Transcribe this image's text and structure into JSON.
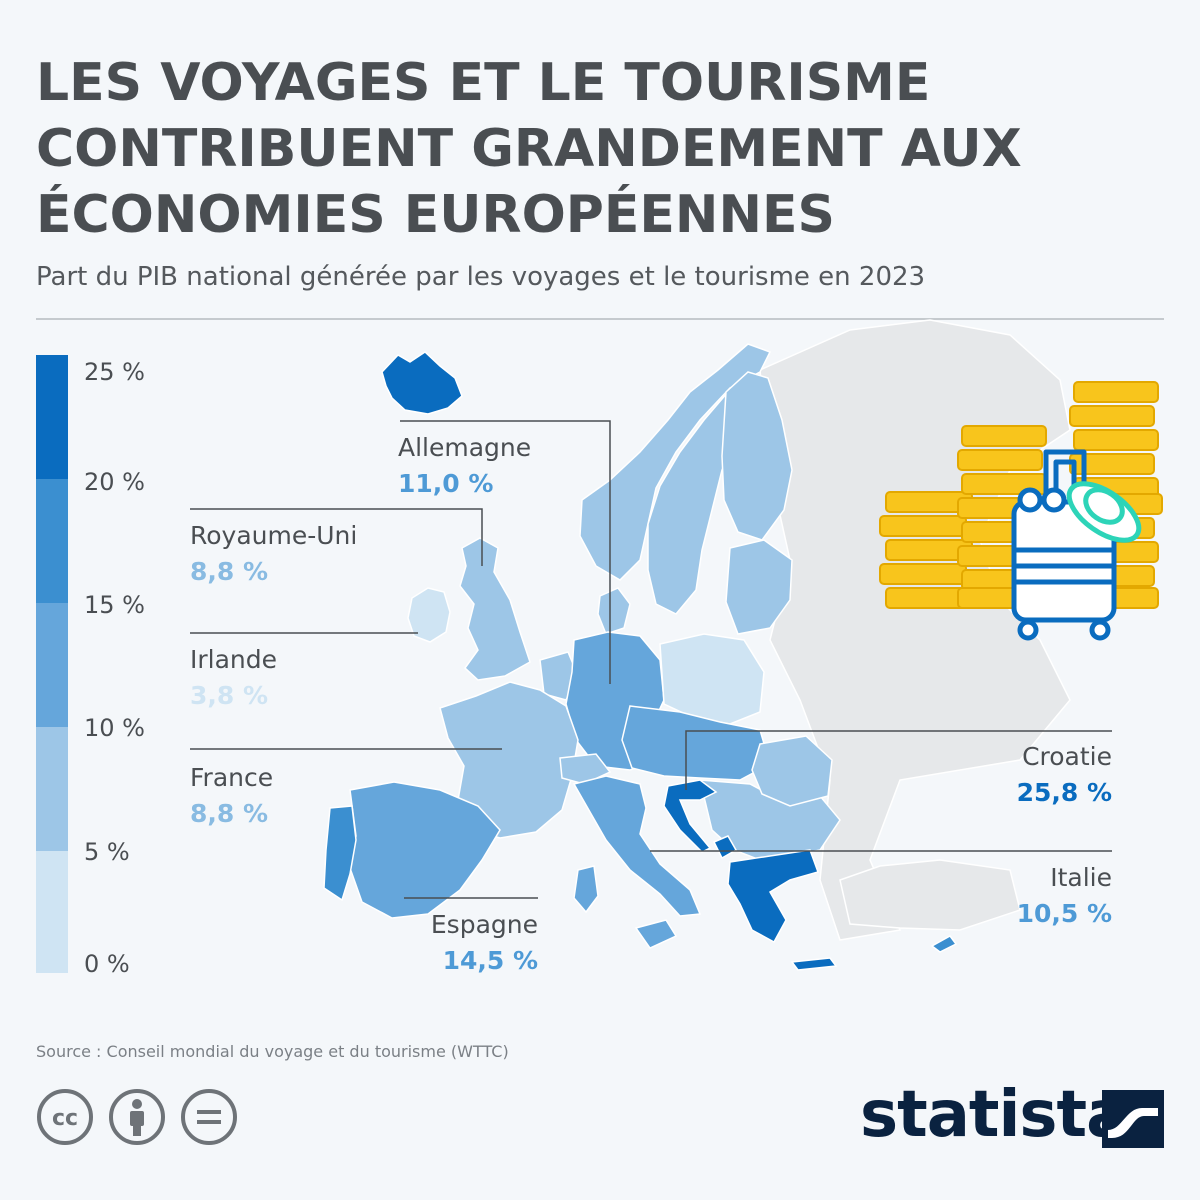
{
  "header": {
    "title_lines": [
      "LES VOYAGES ET LE TOURISME",
      "CONTRIBUENT GRANDEMENT AUX",
      "ÉCONOMIES EUROPÉENNES"
    ],
    "subtitle": "Part du PIB national générée par les voyages et le tourisme en 2023"
  },
  "legend": {
    "ticks": [
      "25 %",
      "20 %",
      "15 %",
      "10 %",
      "5 %",
      "0 %"
    ],
    "colors": [
      "#0a6cbf",
      "#3b8fd0",
      "#65a6db",
      "#9dc6e7",
      "#cfe4f3"
    ]
  },
  "callouts": [
    {
      "name": "Allemagne",
      "value": "11,0 %",
      "color": "#4e9ad6"
    },
    {
      "name": "Royaume-Uni",
      "value": "8,8 %",
      "color": "#89bbe2"
    },
    {
      "name": "Irlande",
      "value": "3,8 %",
      "color": "#cfe4f3"
    },
    {
      "name": "France",
      "value": "8,8 %",
      "color": "#89bbe2"
    },
    {
      "name": "Espagne",
      "value": "14,5 %",
      "color": "#4e9ad6"
    },
    {
      "name": "Croatie",
      "value": "25,8 %",
      "color": "#0a6cbf"
    },
    {
      "name": "Italie",
      "value": "10,5 %",
      "color": "#4e9ad6"
    }
  ],
  "map_colors": {
    "background_land": "#e6e8ea",
    "bucket_0_5": "#cfe4f3",
    "bucket_5_10": "#9dc6e7",
    "bucket_10_15": "#65a6db",
    "bucket_15_20": "#3b8fd0",
    "bucket_20_25": "#0a6cbf"
  },
  "icons": {
    "coins": "coin-stack-icon",
    "suitcase": "suitcase-icon",
    "hat": "sun-hat-icon"
  },
  "footer": {
    "source": "Source : Conseil mondial du voyage et du tourisme (WTTC)",
    "logo": "statista",
    "license_icons": [
      "cc-icon",
      "attribution-icon",
      "no-derivatives-icon"
    ]
  }
}
